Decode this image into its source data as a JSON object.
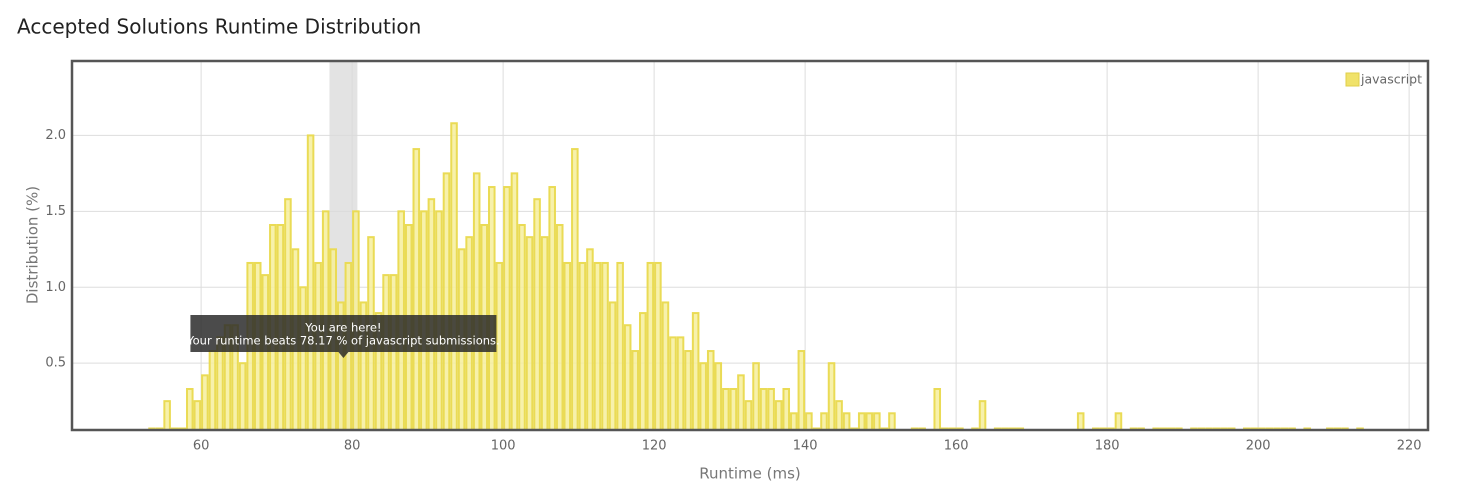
{
  "chart_data": {
    "type": "histogram",
    "title": "Accepted Solutions Runtime Distribution",
    "x_label": "Runtime (ms)",
    "y_label": "Distribution (%)",
    "legend": {
      "name": "javascript",
      "position": "top-right"
    },
    "color": "#f6ee9c",
    "edge_color": "#eadb55",
    "grid": true,
    "xlim": [
      42.9,
      222.5
    ],
    "ylim": [
      0.06,
      2.49
    ],
    "xticks": [
      60,
      80,
      100,
      120,
      140,
      160,
      180,
      200,
      220
    ],
    "yticks": [
      {
        "value": 0.5,
        "label": "0.5"
      },
      {
        "value": 1,
        "label": "1.0"
      },
      {
        "value": 1.5,
        "label": "1.5"
      },
      {
        "value": 2,
        "label": "2.0"
      }
    ],
    "highlight_range": [
      77,
      80.7
    ],
    "annotation": {
      "title": "You are here!",
      "text": "Your runtime beats 78.17 % of javascript submissions."
    },
    "bins": [
      53,
      54,
      55,
      56,
      57,
      58,
      59,
      60,
      61,
      62,
      63,
      64,
      65,
      66,
      67,
      68,
      69,
      70,
      71,
      72,
      73,
      74,
      75,
      76,
      77,
      78,
      79,
      80,
      81,
      82,
      83,
      84,
      85,
      86,
      87,
      88,
      89,
      90,
      91,
      92,
      93,
      94,
      95,
      96,
      97,
      98,
      99,
      100,
      101,
      102,
      103,
      104,
      105,
      106,
      107,
      108,
      109,
      110,
      111,
      112,
      113,
      114,
      115,
      116,
      117,
      118,
      119,
      120,
      121,
      122,
      123,
      124,
      125,
      126,
      127,
      128,
      129,
      130,
      131,
      132,
      133,
      134,
      135,
      136,
      137,
      138,
      139,
      140,
      141,
      142,
      143,
      144,
      145,
      146,
      147,
      148,
      149,
      150,
      151,
      152,
      153,
      154,
      155,
      156,
      157,
      158,
      159,
      160,
      161,
      162,
      163,
      164,
      165,
      166,
      167,
      168,
      169,
      170,
      171,
      172,
      173,
      174,
      175,
      176,
      177,
      178,
      179,
      180,
      181,
      182,
      183,
      184,
      185,
      186,
      187,
      188,
      189,
      190,
      191,
      192,
      193,
      194,
      195,
      196,
      197,
      198,
      199,
      200,
      201,
      202,
      203,
      204,
      205,
      206,
      207,
      208,
      209,
      210,
      211,
      212,
      213,
      214
    ],
    "values": [
      0.07,
      0.07,
      0.25,
      0.07,
      0.07,
      0.33,
      0.25,
      0.42,
      0.58,
      0.67,
      0.75,
      0.75,
      0.5,
      1.16,
      1.16,
      1.08,
      1.41,
      1.41,
      1.58,
      1.25,
      1.0,
      2.0,
      1.16,
      1.5,
      1.25,
      0.9,
      1.16,
      1.5,
      0.9,
      1.33,
      0.83,
      1.08,
      1.08,
      1.5,
      1.41,
      1.91,
      1.5,
      1.58,
      1.5,
      1.75,
      2.08,
      1.25,
      1.33,
      1.75,
      1.41,
      1.66,
      1.16,
      1.66,
      1.75,
      1.41,
      1.33,
      1.58,
      1.33,
      1.66,
      1.41,
      1.16,
      1.91,
      1.16,
      1.25,
      1.16,
      1.16,
      0.9,
      1.16,
      0.75,
      0.58,
      0.83,
      1.16,
      1.16,
      0.9,
      0.67,
      0.67,
      0.58,
      0.83,
      0.5,
      0.58,
      0.5,
      0.33,
      0.33,
      0.42,
      0.25,
      0.5,
      0.33,
      0.33,
      0.25,
      0.33,
      0.17,
      0.58,
      0.17,
      0.07,
      0.17,
      0.5,
      0.25,
      0.17,
      0.07,
      0.17,
      0.17,
      0.17,
      0.07,
      0.17,
      0,
      0,
      0.07,
      0.07,
      0,
      0.33,
      0.07,
      0.07,
      0.07,
      0,
      0.07,
      0.25,
      0,
      0.07,
      0.07,
      0.07,
      0.07,
      0,
      0,
      0,
      0,
      0,
      0,
      0,
      0.17,
      0,
      0.07,
      0.07,
      0.07,
      0.17,
      0,
      0.07,
      0.07,
      0,
      0.07,
      0.07,
      0.07,
      0.07,
      0,
      0.07,
      0.07,
      0.07,
      0.07,
      0.07,
      0.07,
      0,
      0.07,
      0.07,
      0.07,
      0.07,
      0.07,
      0.07,
      0.07,
      0,
      0.07,
      0,
      0,
      0.07,
      0.07,
      0.07,
      0,
      0.07
    ]
  }
}
